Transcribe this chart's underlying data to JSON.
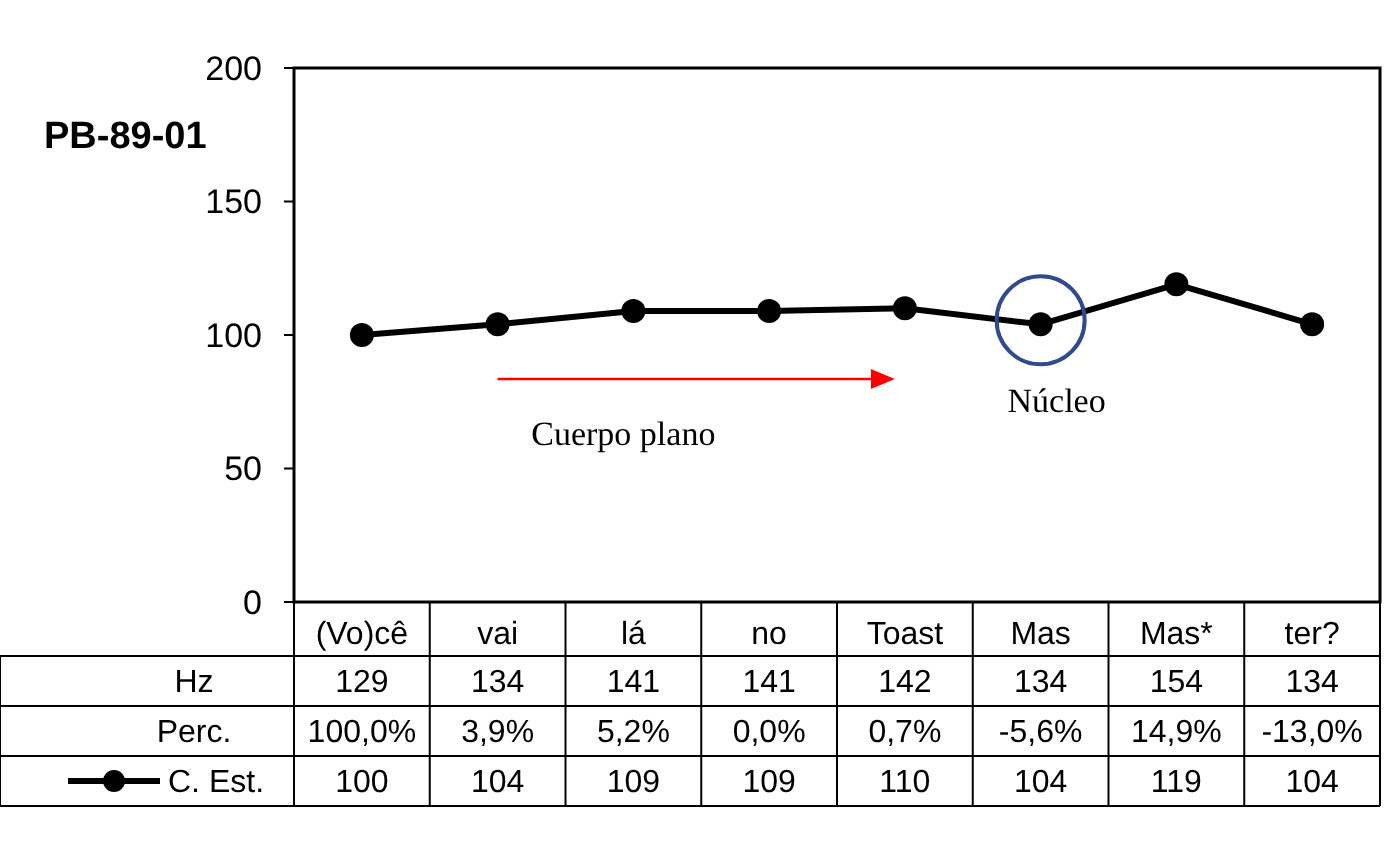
{
  "chart_data": {
    "type": "line",
    "title": "PB-89-01",
    "categories": [
      "(Vo)cê",
      "vai",
      "lá",
      "no",
      "Toast",
      "Mas",
      "Mas*",
      "ter?"
    ],
    "series": [
      {
        "name": "C. Est.",
        "color": "#000000",
        "values": [
          100,
          104,
          109,
          109,
          110,
          104,
          119,
          104
        ]
      }
    ],
    "ylim": [
      0,
      200
    ],
    "yticks": [
      0,
      50,
      100,
      150,
      200
    ],
    "grid": false,
    "marker": "circle",
    "line_style": "solid",
    "legend": "bottom",
    "data_labels": true,
    "annotations": [
      {
        "text": "Núcleo",
        "x": "Mas",
        "y": 104
      },
      "Hz",
      "129",
      "134",
      "141",
      "141",
      "142",
      "134",
      "154",
      "134",
      "Perc.",
      "100,0%",
      "3,9%",
      "5,2%",
      "0,0%",
      "0,7%",
      "-5,6%",
      "14,9%",
      "-13,0%",
      "Cuerpo plano"
    ]
  }
}
